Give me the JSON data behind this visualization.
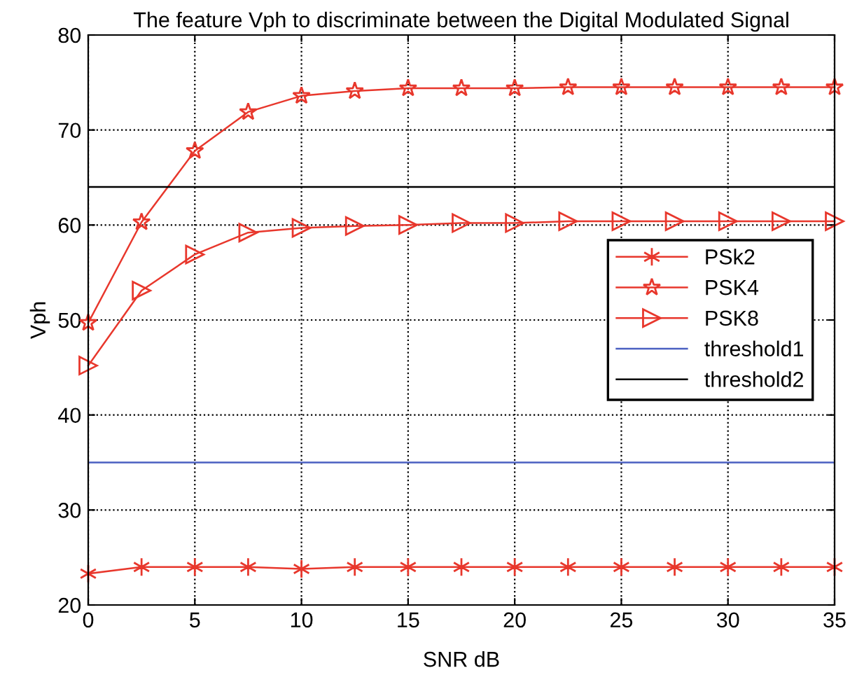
{
  "chart_data": {
    "type": "line",
    "title": "The feature Vph to discriminate between the Digital Modulated Signal",
    "xlabel": "SNR dB",
    "ylabel": "Vph",
    "x": [
      0,
      2.5,
      5,
      7.5,
      10,
      12.5,
      15,
      17.5,
      20,
      22.5,
      25,
      27.5,
      30,
      32.5,
      35
    ],
    "series": [
      {
        "name": "PSk2",
        "color": "#e8372c",
        "marker": "cross",
        "values": [
          23.3,
          24.0,
          24.0,
          24.0,
          23.8,
          24.0,
          24.0,
          24.0,
          24.0,
          24.0,
          24.0,
          24.0,
          24.0,
          24.0,
          24.0
        ]
      },
      {
        "name": "PSK4",
        "color": "#e8372c",
        "marker": "star",
        "values": [
          49.7,
          60.3,
          67.8,
          71.9,
          73.6,
          74.1,
          74.4,
          74.4,
          74.4,
          74.5,
          74.5,
          74.5,
          74.5,
          74.5,
          74.5
        ]
      },
      {
        "name": "PSK8",
        "color": "#e8372c",
        "marker": "triangle",
        "values": [
          45.2,
          53.1,
          56.9,
          59.2,
          59.7,
          59.9,
          60.0,
          60.2,
          60.2,
          60.4,
          60.4,
          60.4,
          60.4,
          60.4,
          60.4
        ]
      }
    ],
    "ref_lines": [
      {
        "axis": "y",
        "value": 35,
        "label": "threshold1",
        "color": "#4a5fc1"
      },
      {
        "axis": "y",
        "value": 64,
        "label": "threshold2",
        "color": "#000000"
      }
    ],
    "xlim": [
      0,
      35
    ],
    "ylim": [
      20,
      80
    ],
    "xticks": [
      0,
      5,
      10,
      15,
      20,
      25,
      30,
      35
    ],
    "yticks": [
      20,
      30,
      40,
      50,
      60,
      70,
      80
    ],
    "grid": true,
    "legend": "right",
    "line_style": "solid"
  }
}
